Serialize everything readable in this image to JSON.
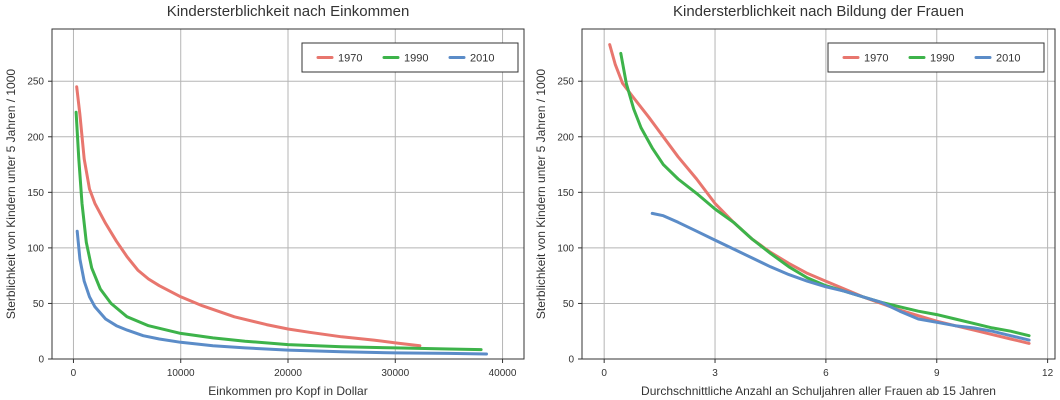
{
  "chart_data": [
    {
      "type": "line",
      "title": "Kindersterblichkeit nach Einkommen",
      "xlabel": "Einkommen pro Kopf in Dollar",
      "ylabel": "Sterblichkeit von Kindern unter 5 Jahren / 1000",
      "xlim": [
        -2000,
        42000
      ],
      "ylim": [
        0,
        297
      ],
      "xticks": [
        0,
        10000,
        20000,
        30000,
        40000
      ],
      "xtick_labels": [
        "0",
        "10000",
        "20000",
        "30000",
        "40000"
      ],
      "yticks": [
        0,
        50,
        100,
        150,
        200,
        250
      ],
      "ytick_labels": [
        "0",
        "50",
        "100",
        "150",
        "200",
        "250"
      ],
      "grid": true,
      "legend_position": "top-right",
      "series": [
        {
          "name": "1970",
          "color": "#e8766e",
          "x": [
            300,
            600,
            1000,
            1500,
            2000,
            3000,
            4000,
            5000,
            6000,
            7000,
            8000,
            10000,
            12000,
            15000,
            18000,
            20000,
            22000,
            25000,
            28000,
            30000,
            32300
          ],
          "y": [
            245,
            220,
            180,
            153,
            140,
            122,
            106,
            92,
            80,
            72,
            66,
            56,
            48,
            38,
            31,
            27,
            24,
            20,
            17,
            14.5,
            12
          ]
        },
        {
          "name": "1990",
          "color": "#3db34a",
          "x": [
            250,
            500,
            800,
            1200,
            1700,
            2500,
            3500,
            5000,
            7000,
            10000,
            13000,
            16000,
            20000,
            25000,
            30000,
            35000,
            38000
          ],
          "y": [
            222,
            180,
            140,
            105,
            82,
            63,
            50,
            38,
            30,
            23,
            19,
            16,
            13,
            11,
            10,
            9,
            8.5
          ]
        },
        {
          "name": "2010",
          "color": "#5b8cc8",
          "x": [
            350,
            600,
            1000,
            1500,
            2000,
            3000,
            4000,
            5000,
            6500,
            8000,
            10000,
            13000,
            16000,
            20000,
            25000,
            30000,
            35000,
            38500
          ],
          "y": [
            115,
            90,
            70,
            56,
            47,
            36,
            30,
            26,
            21,
            18,
            15,
            12,
            10,
            8,
            6.5,
            5.5,
            5,
            4.5
          ]
        }
      ]
    },
    {
      "type": "line",
      "title": "Kindersterblichkeit nach Bildung der Frauen",
      "xlabel": "Durchschnittliche Anzahl an Schuljahren aller Frauen ab 15 Jahren",
      "ylabel": "Sterblichkeit von Kindern unter 5 Jahren / 1000",
      "xlim": [
        -0.6,
        12.2
      ],
      "ylim": [
        0,
        297
      ],
      "xticks": [
        0,
        3,
        6,
        9,
        12
      ],
      "xtick_labels": [
        "0",
        "3",
        "6",
        "9",
        "12"
      ],
      "yticks": [
        0,
        50,
        100,
        150,
        200,
        250
      ],
      "ytick_labels": [
        "0",
        "50",
        "100",
        "150",
        "200",
        "250"
      ],
      "grid": true,
      "legend_position": "top-right",
      "series": [
        {
          "name": "1970",
          "color": "#e8766e",
          "x": [
            0.15,
            0.3,
            0.5,
            0.8,
            1.2,
            1.6,
            2.0,
            2.5,
            3.0,
            3.5,
            4.0,
            4.5,
            5.0,
            5.5,
            6.0,
            6.5,
            7.0,
            7.5,
            8.0,
            8.5,
            9.0,
            9.5,
            10.0,
            10.5,
            11.0,
            11.5
          ],
          "y": [
            283,
            265,
            248,
            235,
            218,
            200,
            182,
            162,
            140,
            123,
            108,
            96,
            86,
            77,
            70,
            63,
            56,
            50,
            44,
            39,
            34,
            30,
            26,
            22,
            18,
            14
          ]
        },
        {
          "name": "1990",
          "color": "#3db34a",
          "x": [
            0.45,
            0.6,
            0.8,
            1.0,
            1.3,
            1.6,
            2.0,
            2.5,
            3.0,
            3.5,
            4.0,
            4.5,
            5.0,
            5.5,
            6.0,
            6.5,
            7.0,
            7.5,
            8.0,
            8.5,
            9.0,
            9.5,
            10.0,
            10.5,
            11.0,
            11.5
          ],
          "y": [
            275,
            248,
            225,
            208,
            190,
            175,
            162,
            149,
            135,
            123,
            108,
            95,
            83,
            73,
            66,
            61,
            56,
            51,
            47,
            43,
            40,
            36,
            32,
            28,
            25,
            21
          ]
        },
        {
          "name": "2010",
          "color": "#5b8cc8",
          "x": [
            1.3,
            1.6,
            2.0,
            2.5,
            3.0,
            3.5,
            4.0,
            4.5,
            5.0,
            5.5,
            6.0,
            6.5,
            7.0,
            7.5,
            8.0,
            8.5,
            9.0,
            9.5,
            10.0,
            10.5,
            11.0,
            11.5
          ],
          "y": [
            131,
            129,
            123,
            115,
            107,
            99,
            91,
            83,
            76,
            70,
            65,
            61,
            56,
            51,
            43,
            36,
            33,
            30,
            28,
            25,
            21,
            17
          ]
        }
      ]
    }
  ]
}
